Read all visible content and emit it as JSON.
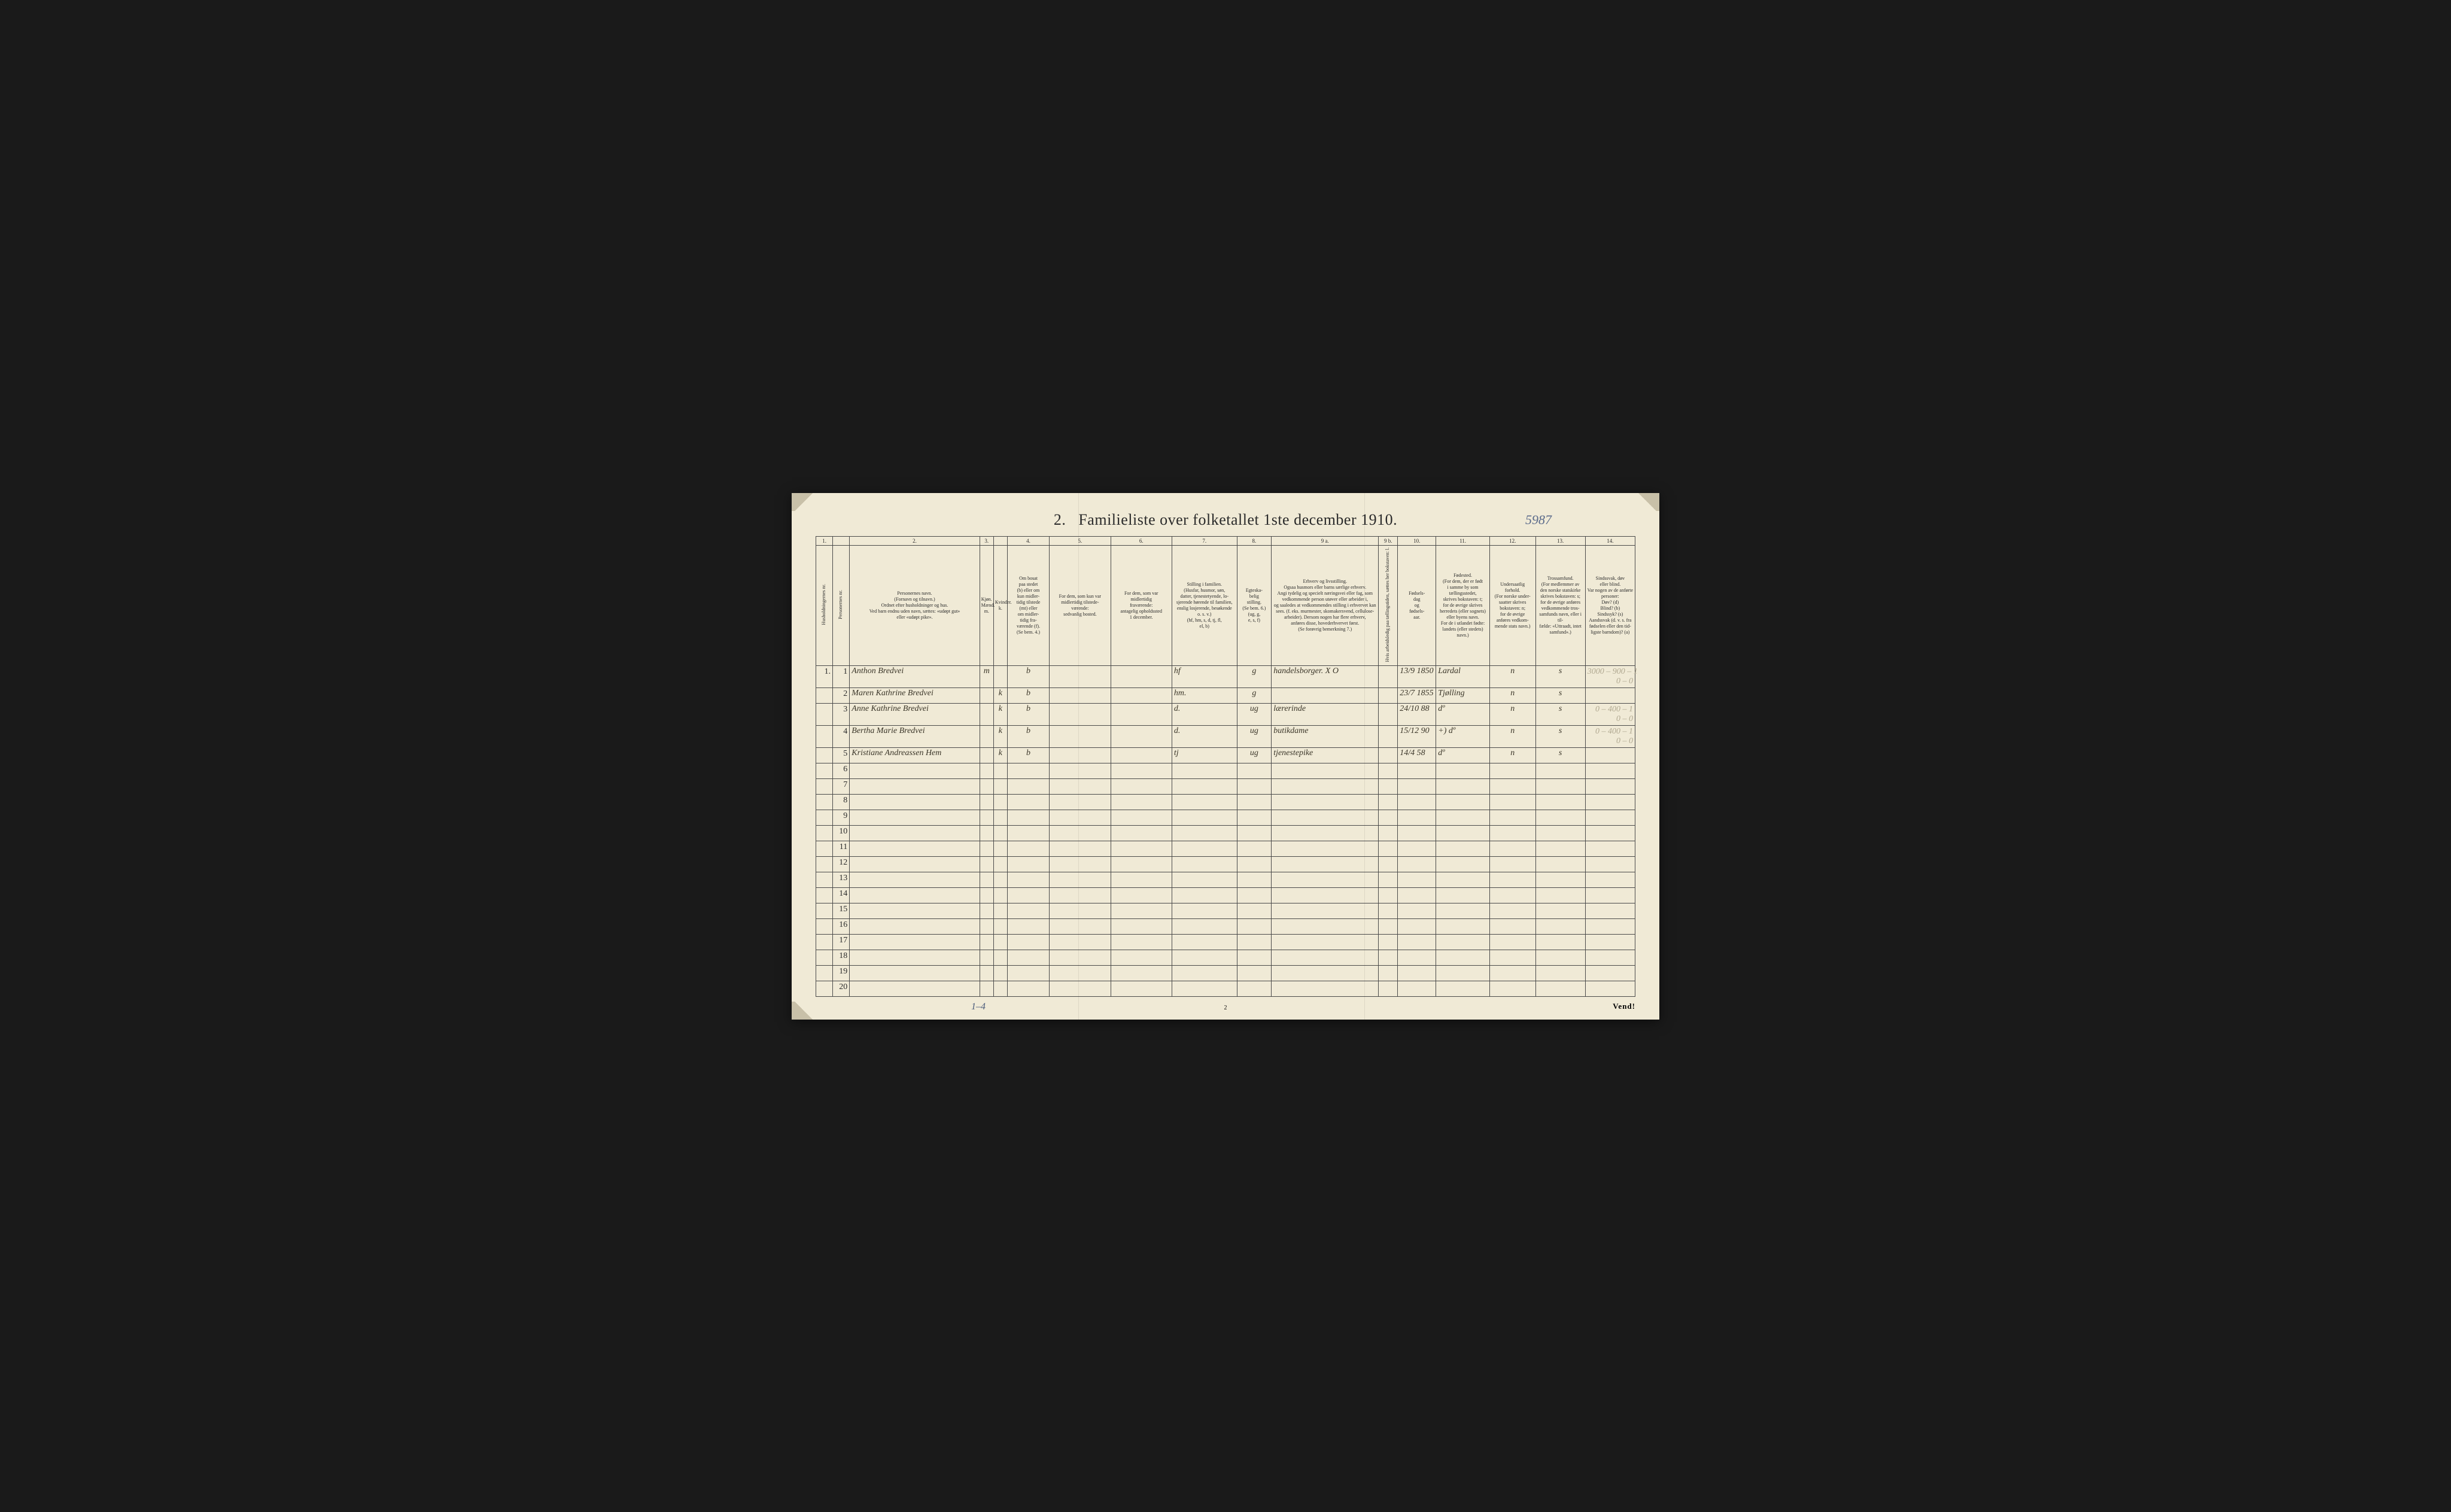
{
  "title_prefix": "2.",
  "title_main": "Familieliste over folketallet 1ste december 1910.",
  "handwritten_title_note": "5987",
  "footer_page": "2",
  "footer_vend": "Vend!",
  "footer_handwritten": "1–4",
  "table": {
    "col_widths_pct": [
      2.2,
      2.2,
      17,
      1.8,
      1.8,
      5.5,
      8,
      8,
      8.5,
      4.5,
      14,
      2.5,
      5,
      7,
      6,
      6.5,
      6.5
    ],
    "colnums": [
      "1.",
      "",
      "2.",
      "3.",
      "",
      "4.",
      "5.",
      "6.",
      "7.",
      "8.",
      "9 a.",
      "9 b.",
      "10.",
      "11.",
      "12.",
      "13.",
      "14."
    ],
    "headers": [
      {
        "text": "Husholdningernes nr.",
        "vertical": true
      },
      {
        "text": "Personernes nr.",
        "vertical": true
      },
      {
        "text": "Personernes navn.\n(Fornavn og tilnavn.)\nOrdnet efter husholdninger og hus.\nVed barn endnu uden navn, sættes: «udøpt gut»\neller «udøpt pike».",
        "vertical": false
      },
      {
        "text": "Kjøn.\nMænd. m.",
        "vertical": false,
        "sub": true
      },
      {
        "text": "Kvinder. k.",
        "vertical": false,
        "sub": true
      },
      {
        "text": "Om bosat\npaa stedet\n(b) eller om\nkun midler-\ntidig tilstede\n(mt) eller\nom midler-\ntidig fra-\nværende (f).\n(Se bem. 4.)",
        "vertical": false
      },
      {
        "text": "For dem, som kun var\nmidlertidig tilstede-\nværende:\nsedvanlig bosted.",
        "vertical": false
      },
      {
        "text": "For dem, som var\nmidlertidig\nfraværende:\nantagelig opholdssted\n1 december.",
        "vertical": false
      },
      {
        "text": "Stilling i familien.\n(Husfar, husmor, søn,\ndatter, tjenestetyende, lo-\nsjerende hørende til familien,\nenslig losjerende, besøkende\no. s. v.)\n(hf, hm, s, d, tj, fl,\nel, b)",
        "vertical": false
      },
      {
        "text": "Egteska-\nbelig\nstilling.\n(Se bem. 6.)\n(ug, g,\ne, s, f)",
        "vertical": false
      },
      {
        "text": "Erhverv og livsstilling.\nOgsaa husmors eller barns særlige erhverv.\nAngi tydelig og specielt næringsvei eller fag, som\nvedkommende person utøver eller arbeider i,\nog saaledes at vedkommendes stilling i erhvervet kan\nsees. (f. eks. murmester, skomakersvend, cellulose-\narbeider). Dersom nogen har flere erhverv,\nanføres disse, hovederhvervet først.\n(Se forøvrig bemerkning 7.)",
        "vertical": false
      },
      {
        "text": "Hvis arbeidsledig\npaa tællingstiden, sættes\nher bokstaven: l.",
        "vertical": true
      },
      {
        "text": "Fødsels-\ndag\nog\nfødsels-\naar.",
        "vertical": false
      },
      {
        "text": "Fødested.\n(For dem, der er født\ni samme by som\ntællingsstedet,\nskrives bokstaven: t;\nfor de øvrige skrives\nherredets (eller sognets)\neller byens navn.\nFor de i utlandet fødte:\nlandets (eller stedets)\nnavn.)",
        "vertical": false
      },
      {
        "text": "Undersaatlig\nforhold.\n(For norske under-\nsaatter skrives\nbokstaven: n;\nfor de øvrige\nanføres vedkom-\nmende stats navn.)",
        "vertical": false
      },
      {
        "text": "Trossamfund.\n(For medlemmer av\nden norske statskirke\nskrives bokstaven: s;\nfor de øvrige anføres\nvedkommende tros-\nsamfunds navn, eller i til-\nfælde: «Uttraadt, intet\nsamfund».)",
        "vertical": false
      },
      {
        "text": "Sindssvak, døv\neller blind.\nVar nogen av de anførte\npersoner:\nDøv? (d)\nBlind? (b)\nSindssyk? (s)\nAandssvak (d. v. s. fra\nfødselen eller den tid-\nligste barndom)? (a)",
        "vertical": false
      }
    ],
    "rows": [
      {
        "hh": "1.",
        "pn": "1",
        "name": "Anthon Bredvei",
        "m": "m",
        "k": "",
        "res": "b",
        "mt": "",
        "fr": "",
        "fam": "hf",
        "eg": "g",
        "erh": "handelsborger.   X O",
        "al": "",
        "dob": "13/9 1850",
        "bplace": "Lardal",
        "nat": "n",
        "rel": "s",
        "note": "3000 – 900 – 1\n0 – 0"
      },
      {
        "hh": "",
        "pn": "2",
        "name": "Maren Kathrine Bredvei",
        "m": "",
        "k": "k",
        "res": "b",
        "mt": "",
        "fr": "",
        "fam": "hm.",
        "eg": "g",
        "erh": "",
        "al": "",
        "dob": "23/7 1855",
        "bplace": "Tjølling",
        "nat": "n",
        "rel": "s",
        "note": ""
      },
      {
        "hh": "",
        "pn": "3",
        "name": "Anne Kathrine Bredvei",
        "m": "",
        "k": "k",
        "res": "b",
        "mt": "",
        "fr": "",
        "fam": "d.",
        "eg": "ug",
        "erh": "lærerinde",
        "al": "",
        "dob": "24/10 88",
        "bplace": "dº",
        "nat": "n",
        "rel": "s",
        "note": "0 – 400 – 1\n0 – 0"
      },
      {
        "hh": "",
        "pn": "4",
        "name": "Bertha Marie Bredvei",
        "m": "",
        "k": "k",
        "res": "b",
        "mt": "",
        "fr": "",
        "fam": "d.",
        "eg": "ug",
        "erh": "butikdame",
        "al": "",
        "dob": "15/12 90",
        "bplace": "+)  dº",
        "nat": "n",
        "rel": "s",
        "note": "0 – 400 – 1\n0 – 0"
      },
      {
        "hh": "",
        "pn": "5",
        "name": "Kristiane Andreassen Hem",
        "m": "",
        "k": "k",
        "res": "b",
        "mt": "",
        "fr": "",
        "fam": "tj",
        "eg": "ug",
        "erh": "tjenestepike",
        "al": "",
        "dob": "14/4 58",
        "bplace": "dº",
        "nat": "n",
        "rel": "s",
        "note": ""
      }
    ],
    "empty_rows": [
      6,
      7,
      8,
      9,
      10,
      11,
      12,
      13,
      14,
      15,
      16,
      17,
      18,
      19,
      20
    ]
  },
  "colors": {
    "paper": "#f0ead6",
    "ink": "#2a2a2a",
    "rule": "#4a4a4a",
    "handwriting": "#3a3528",
    "pencil_blue": "#5a6a8a",
    "pencil_faint": "#b0a890"
  }
}
